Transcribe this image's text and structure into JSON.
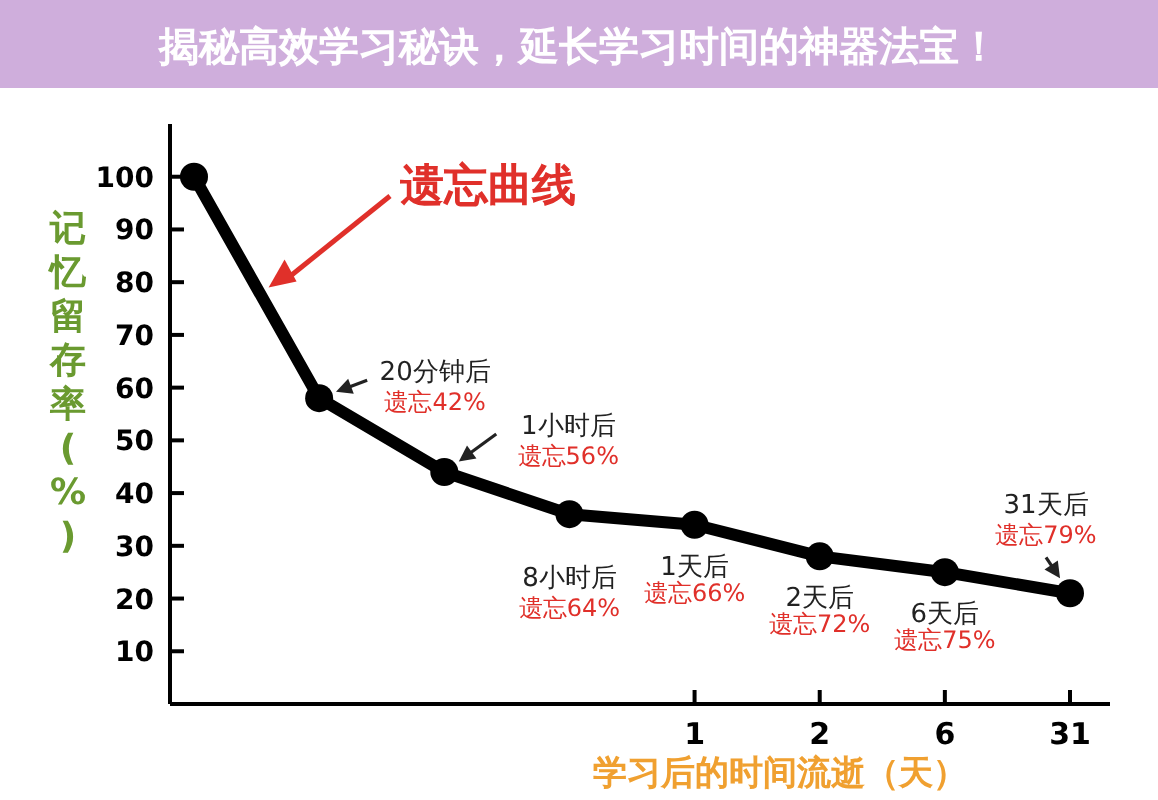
{
  "chart_data": {
    "type": "line",
    "title": "揭秘高效学习秘诀，延长学习时间的神器法宝！",
    "xlabel": "学习后的时间流逝（天）",
    "ylabel": "记忆留存率(%)",
    "categories": [
      null,
      null,
      null,
      null,
      "1",
      "2",
      "6",
      "31"
    ],
    "series": [
      {
        "color": "#000000",
        "values": [
          100,
          58,
          44,
          36,
          34,
          28,
          25,
          21
        ]
      }
    ],
    "ylim": [
      0,
      110
    ],
    "yticks": [
      10,
      20,
      30,
      40,
      50,
      60,
      70,
      80,
      90,
      100
    ],
    "marker": "circle",
    "annotations": [
      "遗忘曲线",
      "20分钟后",
      "遗忘42%",
      "1小时后",
      "遗忘56%",
      "8小时后",
      "遗忘64%",
      {
        "text": "1天后",
        "x": "1",
        "y": 34
      },
      {
        "text": "遗忘66%",
        "x": "1",
        "y": 34
      },
      {
        "text": "2天后",
        "x": "2",
        "y": 28
      },
      {
        "text": "遗忘72%",
        "x": "2",
        "y": 28
      },
      {
        "text": "6天后",
        "x": "6",
        "y": 25
      },
      {
        "text": "遗忘75%",
        "x": "6",
        "y": 25
      },
      {
        "text": "31天后",
        "x": "31",
        "y": 21
      },
      {
        "text": "遗忘79%",
        "x": "31",
        "y": 21
      }
    ]
  }
}
